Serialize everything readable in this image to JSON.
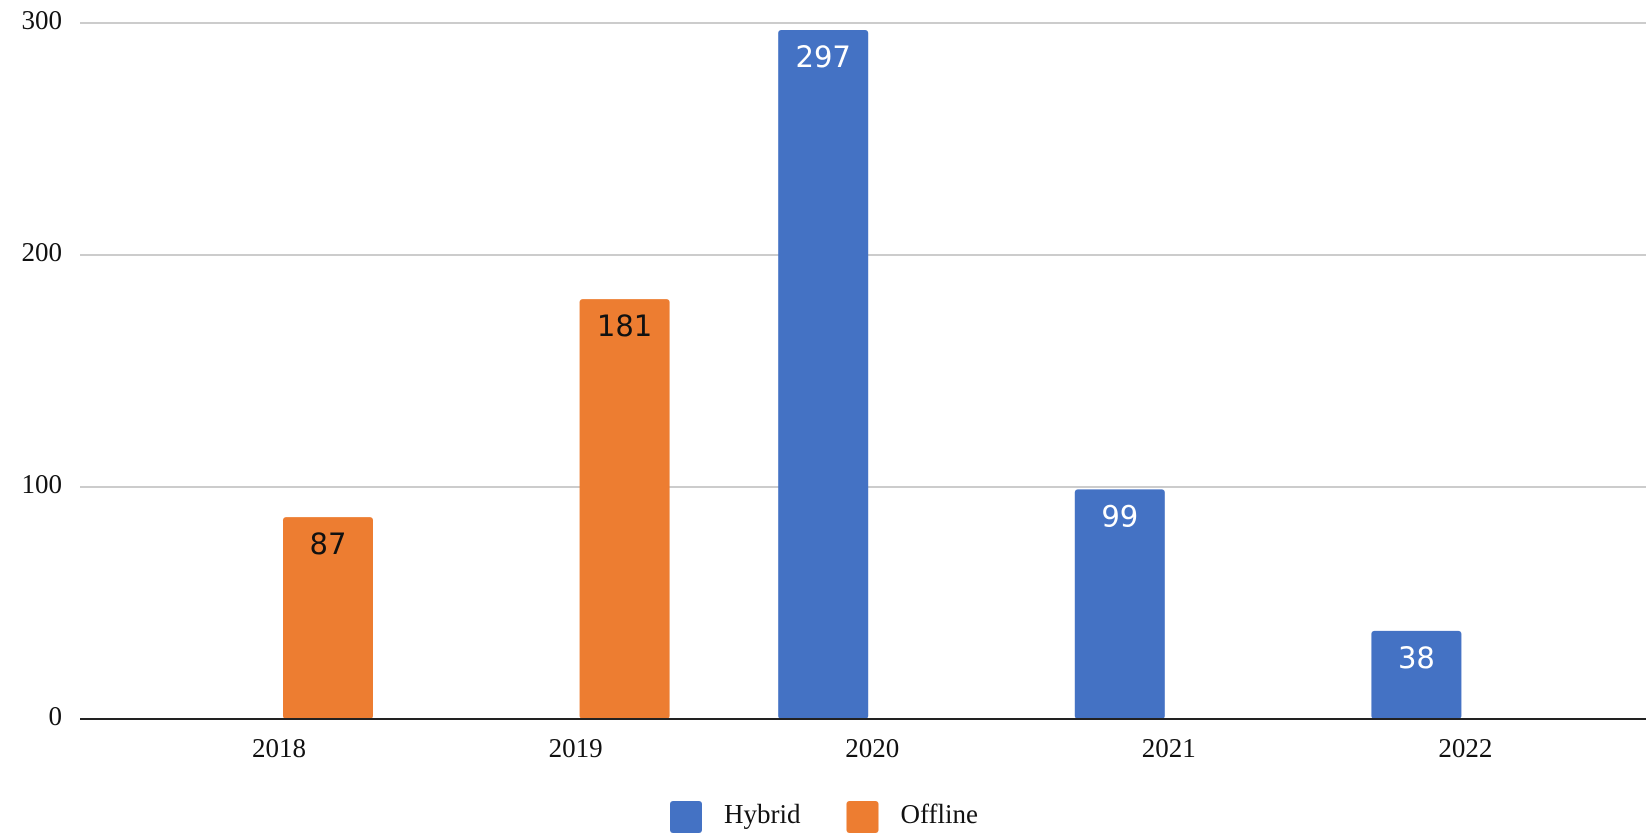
{
  "chart_data": {
    "type": "bar",
    "categories": [
      "2018",
      "2019",
      "2020",
      "2021",
      "2022"
    ],
    "series": [
      {
        "name": "Hybrid",
        "color": "#4472c4",
        "values": [
          null,
          null,
          297,
          99,
          38
        ]
      },
      {
        "name": "Offline",
        "color": "#ed7d31",
        "values": [
          87,
          181,
          null,
          null,
          null
        ]
      }
    ],
    "ylim": [
      0,
      300
    ],
    "yticks": [
      0,
      100,
      200,
      300
    ],
    "grid": true,
    "legend": "bottom"
  }
}
